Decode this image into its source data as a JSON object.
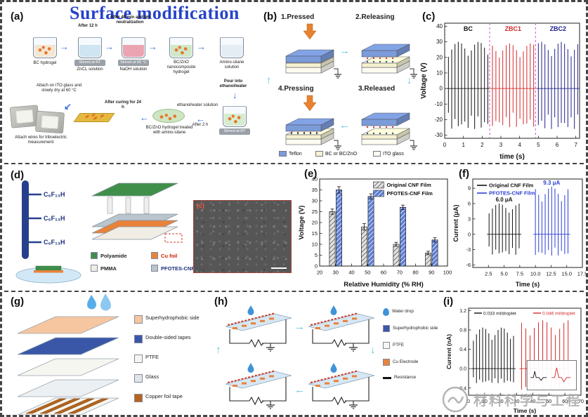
{
  "figure": {
    "title": "Surface modification",
    "watermark_text": "材料科学与工程"
  },
  "icons": {
    "arrow_right": "→",
    "arrow_left": "←",
    "arrow_down": "↓",
    "arrow_up": "↑",
    "arrow_down_left": "↙"
  },
  "panel_a": {
    "label": "(a)",
    "arrow1": "After 12 h",
    "arrow2": "After 40 min and pH neutralization",
    "beakers": [
      "BC hydrogel",
      "ZnCl₂ solution",
      "NaOH solution",
      "BC/ZnO nanocomposite hydrogel",
      "Amino-silane solution"
    ],
    "beaker_ethanol": "ethanol/water solution",
    "stir1": "Stirred at RT",
    "stir2": "Stirred at 55 °C",
    "stir3": "Stirred at RT",
    "pour": "Pour into ethanol/water",
    "attach_ito": "Attach on ITO glass and slowly dry at 60 °C",
    "curing": "After curing for 24 h",
    "after2h": "After 2 h",
    "treated": "BC/ZnO hydrogel treated with amino-silane",
    "wires": "Attach wires for triboelectric measurement"
  },
  "panel_b": {
    "label": "(b)",
    "states": [
      "1.Pressed",
      "2.Releasing",
      "4.Pressing",
      "3.Released"
    ],
    "legend": [
      "Teflon",
      "BC or BC/ZnO",
      "ITO glass"
    ],
    "colors": {
      "teflon": "#7b9bd9",
      "bc": "#f6f1cf",
      "ito": "#fbfbf0"
    }
  },
  "panel_c": {
    "label": "(c)"
  },
  "panel_d": {
    "label": "(d)",
    "chem_groups": [
      "C₆F₁₃H",
      "C₆F₁₃H",
      "C₆F₁₃H"
    ],
    "legend": [
      "Polyamide",
      "Cu foil",
      "PMMA",
      "PFOTES-CNF"
    ],
    "legend_colors": [
      "#3f8f4a",
      "#e8833a",
      "#f0ede4",
      "#b9c4cc"
    ],
    "inset_label": "(c)"
  },
  "panel_e": {
    "label": "(e)"
  },
  "panel_f": {
    "label": "(f)"
  },
  "panel_g": {
    "label": "(g)",
    "legend": [
      "Superhydrophobic side",
      "Double-sided tapes",
      "PTFE",
      "Glass",
      "Copper foil tape"
    ],
    "legend_colors": [
      "#f6c6a0",
      "#3a57a7",
      "#f6f6f0",
      "#dfe6ea",
      "#b5651d"
    ]
  },
  "panel_h": {
    "label": "(h)",
    "legend": [
      "Water drop",
      "Superhydrophobic side",
      "PTFE",
      "Cu Electrode",
      "Resistance"
    ],
    "legend_colors": [
      "#3f93d8",
      "#3a57a7",
      "#f6f6f0",
      "#e8833a",
      "#111111"
    ]
  },
  "panel_i": {
    "label": "(i)"
  },
  "chart_data": [
    {
      "id": "c",
      "type": "line",
      "xlabel": "time (s)",
      "ylabel": "Voltage (V)",
      "xlim": [
        0,
        7.2
      ],
      "ylim": [
        -32,
        42
      ],
      "xticks": [
        0,
        1,
        2,
        3,
        4,
        5,
        6,
        7
      ],
      "yticks": [
        -30,
        -20,
        -10,
        0,
        10,
        20,
        30,
        40
      ],
      "dividers": [
        2.4,
        4.85
      ],
      "divider_color": "#d44fd4",
      "segments": [
        {
          "name": "BC",
          "color": "#111111",
          "x_start": 0.2,
          "x_end": 2.3,
          "n_spikes": 13,
          "peak_up": 30,
          "peak_down": -26
        },
        {
          "name": "ZBC1",
          "color": "#d42a2a",
          "x_start": 2.55,
          "x_end": 4.75,
          "n_spikes": 13,
          "peak_up": 29,
          "peak_down": -25
        },
        {
          "name": "ZBC2",
          "color": "#20208a",
          "x_start": 5.0,
          "x_end": 7.1,
          "n_spikes": 13,
          "peak_up": 30,
          "peak_down": -26
        }
      ]
    },
    {
      "id": "e",
      "type": "bar",
      "xlabel": "Relative Humidity (% RH)",
      "ylabel": "Voltage (V)",
      "xlim": [
        20,
        100
      ],
      "ylim": [
        0,
        40
      ],
      "xticks": [
        20,
        30,
        40,
        50,
        60,
        70,
        80,
        90,
        100
      ],
      "yticks": [
        0,
        5,
        10,
        15,
        20,
        25,
        30,
        35,
        40
      ],
      "categories": [
        30,
        50,
        70,
        90
      ],
      "series": [
        {
          "name": "Original CNF Film",
          "values": [
            25,
            18,
            10,
            6
          ],
          "errors": [
            1.2,
            1.5,
            0.9,
            0.8
          ],
          "color": "#9a9a9a"
        },
        {
          "name": "PFOTES-CNF Film",
          "values": [
            35,
            32,
            27,
            12
          ],
          "errors": [
            1.5,
            1.2,
            1.0,
            1.0
          ],
          "color": "#5d7fd0"
        }
      ]
    },
    {
      "id": "f",
      "type": "line",
      "xlabel": "Time (s)",
      "ylabel": "Current (μA)",
      "xlim": [
        0,
        17.5
      ],
      "ylim": [
        -6.5,
        10.8
      ],
      "xticks": [
        "2.5",
        "5.0",
        "7.5",
        "10.0",
        "12.5",
        "15.0",
        "17.5"
      ],
      "yticks": [
        -6,
        -3,
        0,
        3,
        6,
        9
      ],
      "legend_pos": "tl",
      "segments": [
        {
          "name": "Original CNF Film",
          "color": "#111111",
          "x_start": 2.6,
          "x_end": 7.4,
          "n_spikes": 10,
          "peak_up": 6.0,
          "peak_down": -4.0,
          "annotation": "6.0 μA"
        },
        {
          "name": "PFOTES-CNF Film",
          "color": "#2b3fd4",
          "x_start": 10.0,
          "x_end": 15.2,
          "n_spikes": 11,
          "peak_up": 9.3,
          "peak_down": -4.2,
          "annotation": "9.3 μA"
        }
      ]
    },
    {
      "id": "i",
      "type": "line",
      "xlabel": "Time (s)",
      "ylabel": "Current (nA)",
      "xlim": [
        0,
        70
      ],
      "ylim": [
        -0.55,
        1.25
      ],
      "xticks": [
        0,
        10,
        20,
        30,
        40,
        50,
        60,
        70
      ],
      "yticks": [
        "-0.4",
        "0.0",
        "0.4",
        "0.8",
        "1.2"
      ],
      "legend_pos": "th",
      "segments": [
        {
          "name": "0.033 ml/droplet",
          "color": "#111111",
          "x_start": 3,
          "x_end": 28,
          "n_spikes": 14,
          "peak_up": 0.85,
          "peak_down": -0.3
        },
        {
          "name": "0.046 ml/droplet",
          "color": "#d42a2a",
          "x_start": 33,
          "x_end": 62,
          "n_spikes": 12,
          "peak_up": 1.0,
          "peak_down": -0.45
        }
      ]
    }
  ]
}
